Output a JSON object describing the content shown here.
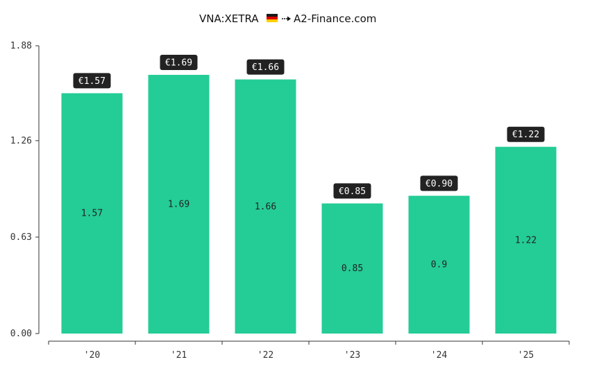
{
  "chart_data": {
    "type": "bar",
    "title": "VNA:XETRA",
    "title_source": "A2-Finance.com",
    "categories": [
      "'20",
      "'21",
      "'22",
      "'23",
      "'24",
      "'25"
    ],
    "values": [
      1.57,
      1.69,
      1.66,
      0.85,
      0.9,
      1.22
    ],
    "inner_labels": [
      "1.57",
      "1.69",
      "1.66",
      "0.85",
      "0.9",
      "1.22"
    ],
    "badge_labels": [
      "€1.57",
      "€1.69",
      "€1.66",
      "€0.85",
      "€0.90",
      "€1.22"
    ],
    "y_ticks": [
      "0.00",
      "0.63",
      "1.26",
      "1.88"
    ],
    "y_tick_values": [
      0,
      0.63,
      1.26,
      1.88
    ],
    "ylim": [
      0,
      1.88
    ],
    "xlabel": "",
    "ylabel": "",
    "grid": false,
    "colors": {
      "bar": "#24cc96",
      "badge": "#222222",
      "axis": "#333333"
    }
  }
}
